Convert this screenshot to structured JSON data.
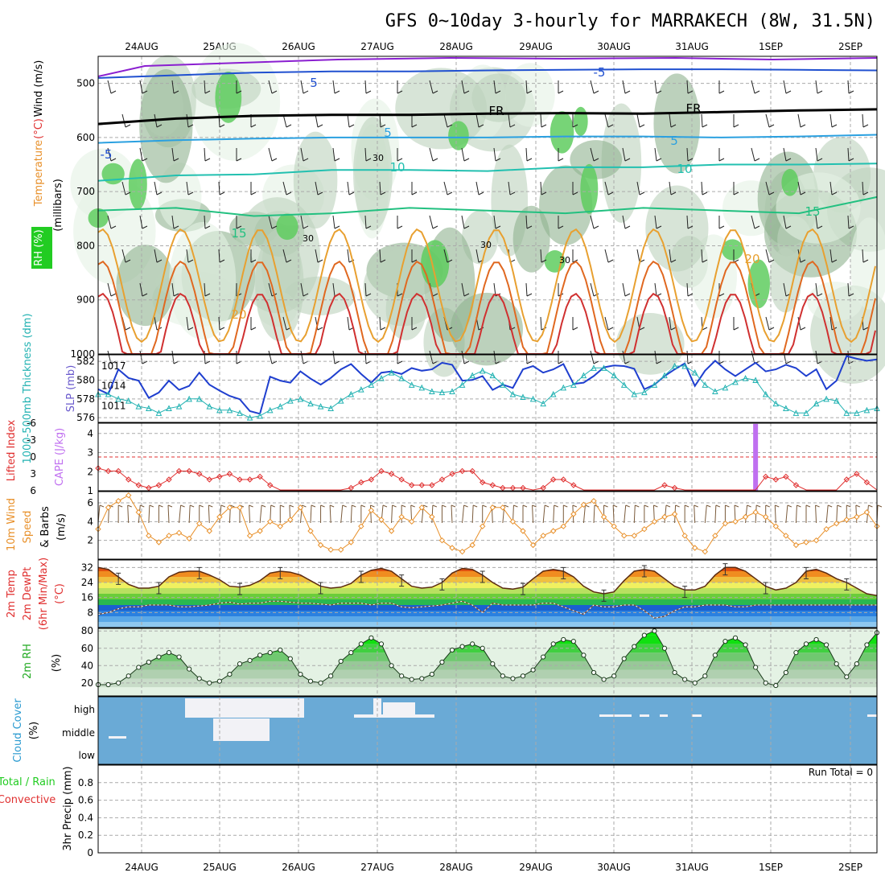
{
  "title": "GFS 0~10day 3-hourly for MARRAKECH (8W, 31.5N)",
  "date_labels": [
    "24AUG",
    "25AUG",
    "26AUG",
    "27AUG",
    "28AUG",
    "29AUG",
    "30AUG",
    "31AUG",
    "1SEP",
    "2SEP"
  ],
  "run_total": "Run Total = 0",
  "colors": {
    "temp_hot": "#e03030",
    "cloud": "#6aaad6",
    "rh": "#22cc22",
    "slp": "#1f3fcf",
    "thick": "#22b2b2",
    "cape": "#c070f0",
    "wind": "#e8902a"
  },
  "chart_data": [
    {
      "id": "upper-air",
      "type": "heatmap",
      "ylabel_parts": [
        {
          "text": "Wind (m/s)",
          "color": "#000000"
        },
        {
          "text": "Temperature",
          "color": "#e8902a"
        },
        {
          "text": "(°C)",
          "color": "#e03030"
        },
        {
          "text": "RH (%)",
          "color": "#22aa22"
        }
      ],
      "yunit": "(millibars)",
      "yticks": [
        500,
        600,
        700,
        800,
        900,
        1000
      ],
      "ylim": [
        450,
        1000
      ],
      "contour_labels": [
        "5",
        "-5",
        "FR",
        "FR",
        "-5",
        "5",
        "5",
        "10",
        "10",
        "15",
        "15",
        "20",
        "20",
        "30",
        "30",
        "30",
        "30"
      ],
      "isotherms": [
        {
          "value": -5,
          "p": [
            490,
            485,
            480,
            478,
            478,
            476,
            475,
            474,
            474,
            475,
            476
          ]
        },
        {
          "value": 0,
          "p": [
            575,
            565,
            560,
            558,
            558,
            556,
            555,
            556,
            553,
            550,
            548
          ]
        },
        {
          "value": 5,
          "p": [
            610,
            605,
            602,
            600,
            600,
            600,
            598,
            598,
            600,
            598,
            595
          ]
        },
        {
          "value": 10,
          "p": [
            680,
            670,
            668,
            660,
            660,
            662,
            655,
            655,
            650,
            650,
            648
          ]
        },
        {
          "value": 15,
          "p": [
            735,
            730,
            745,
            740,
            730,
            735,
            740,
            730,
            735,
            740,
            710
          ]
        }
      ]
    },
    {
      "id": "thickness-slp",
      "type": "line",
      "ylabel_left": "1000-500mb Thickness (dm)",
      "ylabel_right": "SLP (mb)",
      "yticks_left": [
        576,
        578,
        580,
        582
      ],
      "yticks_right": [
        1011,
        1014,
        1017
      ],
      "series": [
        {
          "name": "SLP (mb)",
          "axis": "right",
          "values": [
            1013.5,
            1012.8,
            1016.5,
            1015.2,
            1014.8,
            1012.2,
            1013,
            1014.8,
            1013.4,
            1014,
            1016,
            1014.2,
            1013.3,
            1012.5,
            1012,
            1010.2,
            1009.8,
            1015.4,
            1014.8,
            1014.5,
            1016.2,
            1015.1,
            1014.2,
            1015.2,
            1016.5,
            1017.3,
            1015.8,
            1014.5,
            1016,
            1016.2,
            1015.8,
            1016.7,
            1016.3,
            1016.5,
            1017.5,
            1017.2,
            1014.8,
            1014.9,
            1015.5,
            1013.4,
            1014.2,
            1013.7,
            1016.5,
            1017,
            1016,
            1016.5,
            1017.3,
            1014.3,
            1014.5,
            1015.5,
            1016.8,
            1017.1,
            1017,
            1016.6,
            1013.5,
            1014.2,
            1015.5,
            1016.5,
            1017.4,
            1014,
            1016.3,
            1017.8,
            1016.5,
            1015.5,
            1016.5,
            1017.5,
            1016.2,
            1016.5,
            1017.2,
            1016.7,
            1015.5,
            1016.5,
            1013.5,
            1014.8,
            1018.5,
            1018.1,
            1017.8,
            1018
          ]
        },
        {
          "name": "1000-500mb Thickness (dm)",
          "axis": "left",
          "values": [
            578.5,
            578.5,
            578,
            577.8,
            577.2,
            577,
            576.5,
            577,
            577.2,
            578,
            578,
            577.2,
            576.8,
            576.8,
            576.5,
            576,
            576.2,
            576.8,
            577.2,
            577.8,
            578,
            577.5,
            577.2,
            577,
            577.8,
            578.5,
            579,
            579.5,
            580.2,
            580.8,
            580.2,
            579.5,
            579.2,
            578.8,
            578.7,
            578.8,
            579.5,
            580.5,
            581,
            580.5,
            579.5,
            578.5,
            578.2,
            578,
            577.5,
            578.5,
            579.2,
            579.5,
            580.5,
            581.3,
            581.3,
            580.5,
            579.5,
            578.5,
            578.7,
            579.5,
            580.5,
            581.5,
            581.5,
            580.8,
            579.5,
            578.8,
            579.2,
            579.8,
            580.2,
            580,
            578.5,
            577.5,
            577,
            576.5,
            576.5,
            577.5,
            578,
            577.8,
            576.5,
            576.5,
            576.8,
            577
          ]
        }
      ]
    },
    {
      "id": "li-cape",
      "type": "line",
      "ylabel_left": "Lifted Index",
      "ylabel_right": "CAPE (J/kg)",
      "yticks_left": [
        "-6",
        "-3",
        "0",
        "3",
        "6"
      ],
      "yticks_right": [
        "1",
        "2",
        "3",
        "4"
      ],
      "series": [
        {
          "name": "Lifted Index",
          "values": [
            2,
            2.5,
            2.5,
            4,
            5,
            5.5,
            5,
            4,
            2.5,
            2.5,
            3,
            4,
            3.5,
            3,
            4,
            4,
            3.5,
            5,
            6.5,
            6.5,
            6.5,
            6.5,
            6.5,
            6.5,
            6.5,
            5.5,
            4.5,
            4,
            2.5,
            3,
            4,
            5,
            5,
            5,
            4,
            3,
            2.5,
            2.5,
            4.5,
            5,
            5.5,
            5.5,
            5.5,
            6.5,
            5.5,
            4,
            4,
            5,
            6.5,
            6.5,
            6.5,
            6.5,
            6.5,
            6.5,
            6.5,
            6.5,
            5,
            5.5,
            6.5,
            6.5,
            6.5,
            6.5,
            6.5,
            6.5,
            6.5,
            6.5,
            3.5,
            4,
            3.5,
            5,
            6.5,
            6.5,
            6.5,
            6.5,
            4,
            3,
            4.5,
            6.5
          ]
        },
        {
          "name": "CAPE (J/kg)",
          "values": [
            0,
            0,
            0,
            0,
            0,
            0,
            0,
            0,
            0,
            0,
            0,
            0,
            0,
            0,
            0,
            0,
            0,
            0,
            0,
            0,
            0,
            0,
            0,
            0,
            0,
            0,
            0,
            0,
            0,
            0,
            0,
            0,
            0,
            0,
            0,
            0,
            0,
            0,
            0,
            0,
            0,
            0,
            0,
            0,
            0,
            0,
            0,
            0,
            0,
            0,
            0,
            0,
            0,
            0,
            0,
            0,
            0,
            0,
            0,
            0,
            0,
            0,
            0,
            0,
            0,
            4.5,
            0,
            0,
            0,
            0,
            0,
            0,
            0,
            0,
            0,
            0,
            0,
            0
          ]
        }
      ]
    },
    {
      "id": "wind10m",
      "type": "line",
      "ylabel": "10m Wind Speed & Barbs (m/s)",
      "yticks": [
        2,
        4,
        6
      ],
      "series": [
        {
          "name": "10m Wind Speed",
          "values": [
            3.2,
            5.5,
            6.2,
            6.8,
            5,
            2.5,
            1.8,
            2.5,
            2.8,
            2.2,
            3.8,
            3,
            4.5,
            5.5,
            5.5,
            2.5,
            3,
            4,
            3.5,
            4.2,
            5.5,
            3,
            1.5,
            1,
            1,
            1.8,
            3.5,
            5.2,
            4.2,
            3,
            4.5,
            4,
            5.5,
            4.5,
            2,
            1.2,
            0.8,
            1.5,
            3.5,
            5.5,
            5.5,
            4,
            3,
            1.5,
            2.5,
            3,
            3.5,
            4.8,
            5.8,
            6.2,
            4.5,
            3.5,
            2.5,
            2.5,
            3.2,
            4,
            4.5,
            4.8,
            2.5,
            1.2,
            0.8,
            2.5,
            3.8,
            4,
            4.5,
            5,
            4.5,
            3.5,
            2.5,
            1.5,
            1.8,
            2,
            3.2,
            3.8,
            4.2,
            4.5,
            5,
            3.5
          ]
        }
      ]
    },
    {
      "id": "temp2m",
      "type": "area",
      "ylabel": "2m Temp 2m DewPt (6hr Min/Max) (°C)",
      "yticks": [
        8,
        16,
        24,
        32
      ],
      "series": [
        {
          "name": "2m Temp",
          "values": [
            32,
            31,
            27,
            23,
            21,
            21,
            22,
            27,
            29.5,
            30,
            30,
            28,
            25.5,
            22,
            21.5,
            22.5,
            25,
            29,
            30,
            29.5,
            28,
            25,
            22,
            21,
            21.5,
            23.5,
            28,
            30.5,
            31.5,
            30,
            26,
            22,
            21,
            21.5,
            24,
            29,
            31.5,
            31,
            28,
            24,
            21,
            20.5,
            21.5,
            26,
            30,
            31,
            30,
            27,
            22,
            19,
            18,
            19,
            25,
            30,
            31,
            30,
            26,
            22,
            20,
            20,
            22,
            28,
            32,
            32,
            30,
            26,
            22,
            20,
            21,
            24,
            30,
            31,
            29,
            26,
            24,
            21,
            18,
            17
          ]
        },
        {
          "name": "2m DewPt",
          "values": [
            7,
            8,
            10,
            11,
            11,
            12,
            12,
            12,
            11,
            11,
            11.5,
            12,
            13,
            13.5,
            12.5,
            13,
            13,
            14,
            14,
            13.5,
            13,
            13,
            12.5,
            12,
            13,
            13,
            13,
            12,
            13,
            13,
            11,
            10.5,
            11,
            11.5,
            12,
            13,
            14,
            12,
            8,
            13,
            12,
            12,
            12,
            12,
            13,
            13,
            11,
            9,
            7,
            12,
            11,
            11,
            12,
            12,
            9,
            5,
            6,
            9,
            11,
            11,
            12,
            12,
            12,
            11,
            11,
            12,
            12,
            12,
            12,
            12,
            12,
            12,
            12,
            12,
            12,
            12,
            12,
            12
          ]
        }
      ]
    },
    {
      "id": "rh2m",
      "type": "area",
      "ylabel": "2m RH (%)",
      "yticks": [
        20,
        40,
        60,
        80
      ],
      "series": [
        {
          "name": "2m RH",
          "values": [
            18,
            18,
            20,
            28,
            38,
            44,
            50,
            55,
            50,
            36,
            25,
            20,
            22,
            30,
            42,
            46,
            52,
            55,
            58,
            48,
            30,
            22,
            20,
            28,
            45,
            55,
            65,
            72,
            65,
            40,
            28,
            24,
            25,
            30,
            44,
            58,
            62,
            65,
            60,
            42,
            28,
            25,
            28,
            35,
            50,
            65,
            70,
            68,
            52,
            32,
            24,
            28,
            48,
            62,
            75,
            80,
            60,
            32,
            24,
            20,
            28,
            52,
            68,
            72,
            64,
            38,
            20,
            17,
            32,
            55,
            65,
            70,
            64,
            42,
            27,
            42,
            64,
            78
          ]
        }
      ]
    },
    {
      "id": "cloud",
      "type": "heatmap",
      "ylabel": "Cloud Cover (%)",
      "levels": [
        "high",
        "middle",
        "low"
      ]
    },
    {
      "id": "precip",
      "type": "bar",
      "ylabel_parts": [
        {
          "text": "Total / Rain",
          "color": "#22cc22"
        },
        {
          "text": "Convective",
          "color": "#e03030"
        }
      ],
      "ylabel": "3hr Precip (mm)",
      "yticks": [
        "0",
        "0.2",
        "0.4",
        "0.6",
        "0.8"
      ],
      "ylim": [
        0,
        1
      ],
      "values": []
    }
  ]
}
